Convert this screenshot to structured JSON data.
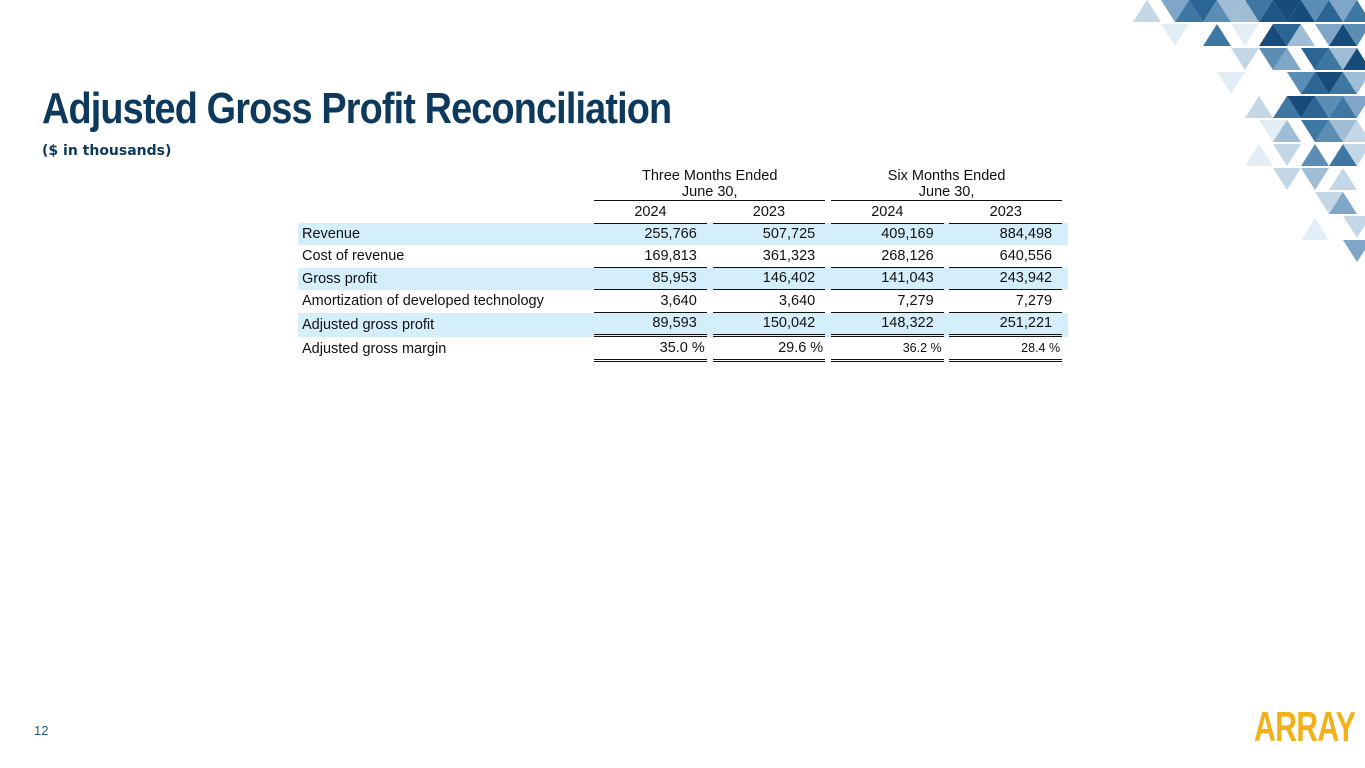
{
  "title": "Adjusted Gross Profit Reconciliation",
  "subtitle": "($ in thousands)",
  "table": {
    "groups": [
      {
        "line1": "Three Months Ended",
        "line2": "June 30,"
      },
      {
        "line1": "Six Months Ended",
        "line2": "June 30,"
      }
    ],
    "years": [
      "2024",
      "2023",
      "2024",
      "2023"
    ],
    "rows": [
      {
        "label": "Revenue",
        "values": [
          "255,766",
          "507,725",
          "409,169",
          "884,498"
        ]
      },
      {
        "label": "Cost of revenue",
        "values": [
          "169,813",
          "361,323",
          "268,126",
          "640,556"
        ]
      },
      {
        "label": "Gross profit",
        "values": [
          "85,953",
          "146,402",
          "141,043",
          "243,942"
        ]
      },
      {
        "label": "Amortization of developed technology",
        "values": [
          "3,640",
          "3,640",
          "7,279",
          "7,279"
        ]
      },
      {
        "label": "Adjusted gross profit",
        "values": [
          "89,593",
          "150,042",
          "148,322",
          "251,221"
        ]
      },
      {
        "label": "Adjusted gross margin",
        "values": [
          "35.0 %",
          "29.6 %",
          "36.2 %",
          "28.4 %"
        ]
      }
    ]
  },
  "footer": {
    "page_number": "12",
    "logo_text": "ARRAY"
  },
  "colors": {
    "title": "#0d3a5c",
    "shade": "#d4effb",
    "logo": "#f2b119"
  }
}
